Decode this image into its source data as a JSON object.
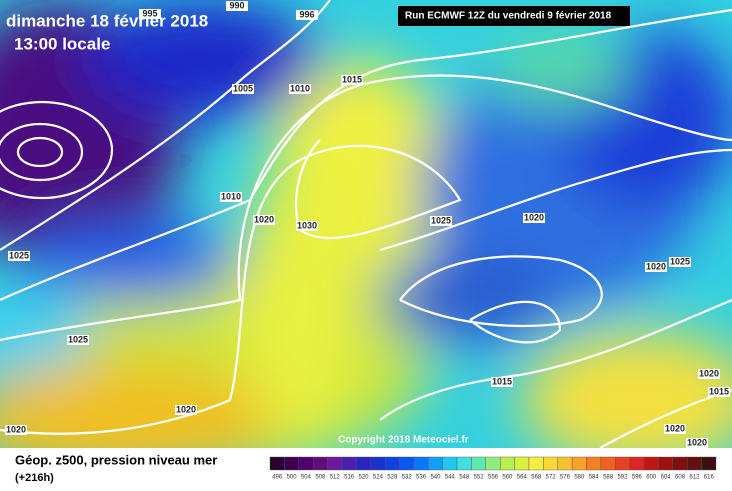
{
  "header": {
    "title": "dimanche 18 février 2018",
    "time": "13:00 locale",
    "run": "Run ECMWF 12Z du vendredi 9 février 2018"
  },
  "isobar_labels": [
    "990",
    "995",
    "996",
    "1005",
    "1010",
    "1015",
    "1010",
    "1020",
    "1030",
    "1025",
    "1020",
    "1025",
    "1020",
    "1025",
    "1025",
    "1015",
    "1020",
    "1015",
    "1020",
    "1020",
    "1020",
    "1020"
  ],
  "copyright": "Copyright 2018 Meteociel.fr",
  "legend": {
    "title": "Géop. z500, pression niveau mer",
    "lead": "(+216h)",
    "scale": [
      496,
      500,
      504,
      508,
      512,
      516,
      520,
      524,
      528,
      532,
      536,
      540,
      544,
      548,
      552,
      556,
      560,
      564,
      568,
      572,
      576,
      580,
      584,
      588,
      592,
      596,
      600,
      604,
      608,
      612,
      616
    ]
  }
}
